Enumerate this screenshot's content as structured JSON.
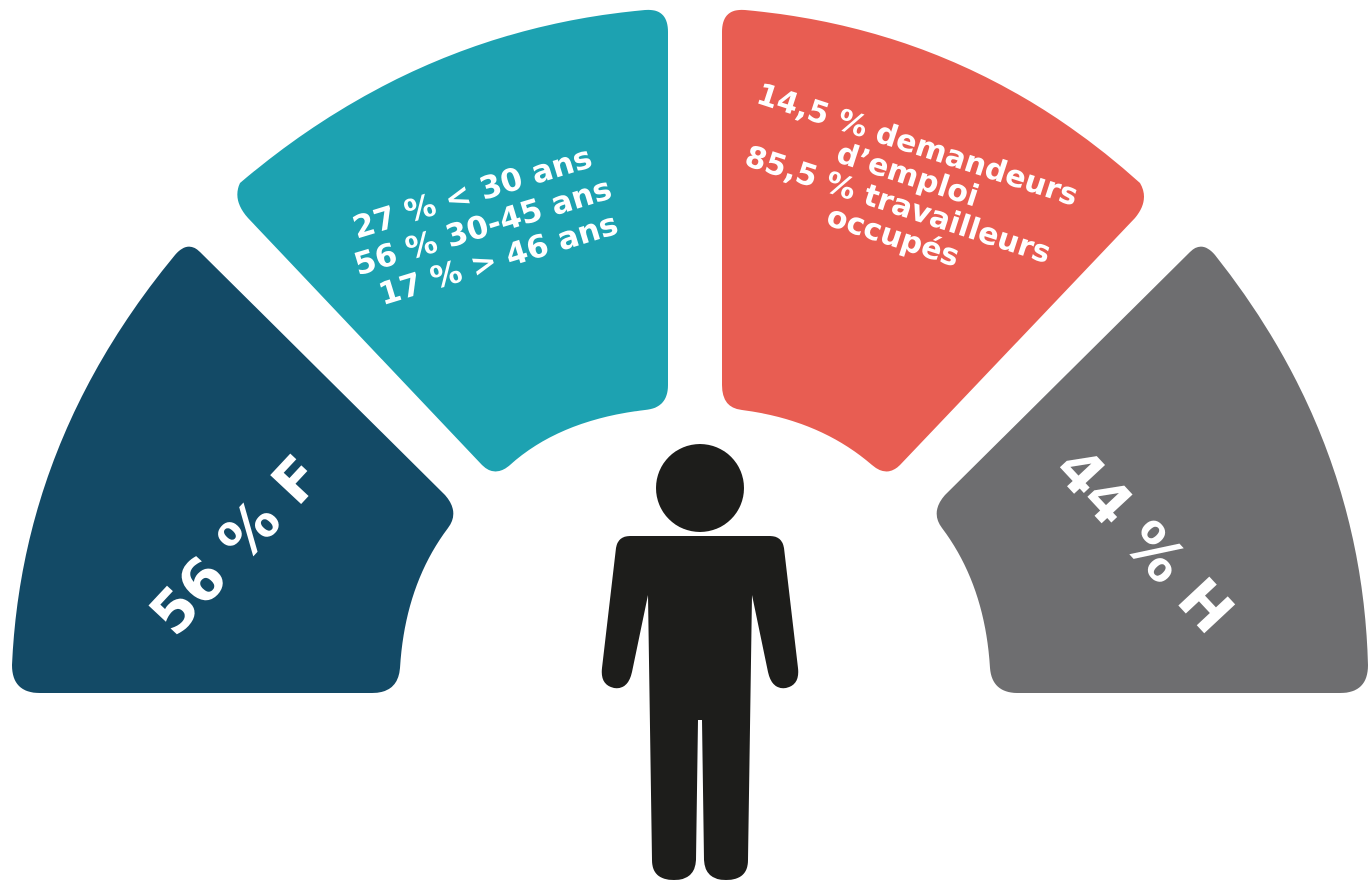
{
  "infographic": {
    "segments": [
      {
        "id": "gender-female",
        "color": "#134a66",
        "lines": [
          "56 % F"
        ]
      },
      {
        "id": "age-groups",
        "color": "#1da2b1",
        "lines": [
          "27 % < 30 ans",
          "56 % 30-45 ans",
          "17 % > 46 ans"
        ]
      },
      {
        "id": "employment-status",
        "color": "#e85d52",
        "lines": [
          "14,5 % demandeurs",
          "d’emploi",
          "85,5 % travailleurs",
          "occupés"
        ]
      },
      {
        "id": "gender-male",
        "color": "#6e6e70",
        "lines": [
          "44 % H"
        ]
      }
    ],
    "person_icon": {
      "icon": "person-icon",
      "color": "#1d1d1b"
    }
  }
}
